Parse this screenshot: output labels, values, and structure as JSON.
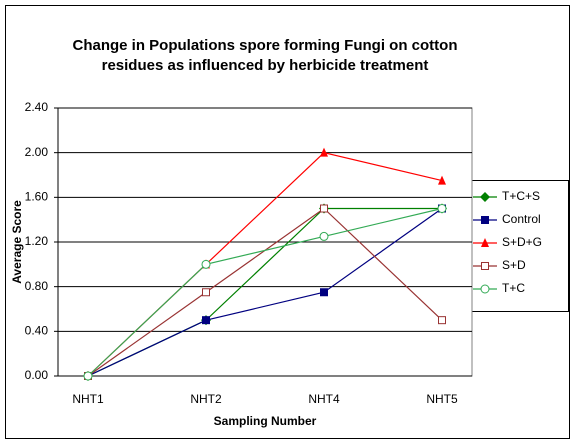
{
  "chart_data": {
    "type": "line",
    "title": [
      "Change in Populations spore forming Fungi on cotton",
      "residues as influenced by herbicide treatment"
    ],
    "x_label": "Sampling Number",
    "y_label": "Average Score",
    "categories": [
      "NHT1",
      "NHT2",
      "NHT4",
      "NHT5"
    ],
    "ylim": [
      0,
      2.4
    ],
    "yticks": [
      {
        "value": 0,
        "label": "0.00"
      },
      {
        "value": 0.4,
        "label": "0.40"
      },
      {
        "value": 0.8,
        "label": "0.80"
      },
      {
        "value": 1.2,
        "label": "1.20"
      },
      {
        "value": 1.6,
        "label": "1.60"
      },
      {
        "value": 2.0,
        "label": "2.00"
      },
      {
        "value": 2.4,
        "label": "2.40"
      }
    ],
    "grid": true,
    "legend": "right",
    "series": [
      {
        "name": "T+C+S",
        "color": "#008000",
        "marker": "diamond",
        "values": [
          0,
          0.5,
          1.5,
          1.5
        ]
      },
      {
        "name": "Control",
        "color": "#000080",
        "marker": "square",
        "values": [
          0,
          0.5,
          0.75,
          1.5
        ]
      },
      {
        "name": "S+D+G",
        "color": "#ff0000",
        "marker": "triangle",
        "values": [
          0,
          1.0,
          2.0,
          1.75
        ]
      },
      {
        "name": "S+D",
        "color": "#993333",
        "marker": "open-square",
        "values": [
          0,
          0.75,
          1.5,
          0.5
        ]
      },
      {
        "name": "T+C",
        "color": "#33aa55",
        "marker": "open-circle",
        "values": [
          0,
          1.0,
          1.25,
          1.5
        ]
      }
    ]
  }
}
